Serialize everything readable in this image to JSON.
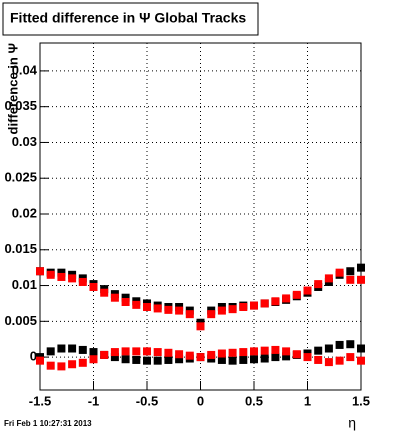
{
  "chart_data": {
    "type": "scatter",
    "title": "Fitted difference in Ψ Global Tracks",
    "y_label": "difference in Ψ",
    "x_label": "η",
    "footer": "Fri Feb  1 10:27:31 2013",
    "x": [
      -1.5,
      -1.4,
      -1.3,
      -1.2,
      -1.1,
      -1,
      -0.9,
      -0.8,
      -0.7,
      -0.6,
      -0.5,
      -0.4,
      -0.3,
      -0.2,
      -0.1,
      0,
      0.1,
      0.2,
      0.3,
      0.4,
      0.5,
      0.6,
      0.7,
      0.8,
      0.9,
      1,
      1.1,
      1.2,
      1.3,
      1.4,
      1.5
    ],
    "series": [
      {
        "color": "#000000",
        "values": [
          0.012,
          0.0118,
          0.0118,
          0.0115,
          0.011,
          0.0102,
          0.0095,
          0.0088,
          0.0083,
          0.0078,
          0.0075,
          0.0072,
          0.007,
          0.007,
          0.0065,
          0.0048,
          0.0065,
          0.007,
          0.007,
          0.0072,
          0.0072,
          0.0075,
          0.0077,
          0.008,
          0.0085,
          0.009,
          0.0098,
          0.0105,
          0.0115,
          0.012,
          0.0125
        ]
      },
      {
        "color": "#ff0000",
        "values": [
          0.012,
          0.0115,
          0.0112,
          0.011,
          0.0105,
          0.0098,
          0.009,
          0.0083,
          0.0077,
          0.0073,
          0.007,
          0.0068,
          0.0066,
          0.0065,
          0.006,
          0.0043,
          0.006,
          0.0065,
          0.0067,
          0.007,
          0.0072,
          0.0075,
          0.0078,
          0.0082,
          0.0087,
          0.0093,
          0.0102,
          0.011,
          0.0118,
          0.0108,
          0.0108
        ]
      },
      {
        "color": "#000000",
        "values": [
          0,
          0.0008,
          0.0012,
          0.0012,
          0.001,
          0.0007,
          0.0003,
          0,
          -0.0003,
          -0.0004,
          -0.0005,
          -0.0005,
          -0.0004,
          -0.0003,
          -0.0002,
          0,
          -0.0002,
          -0.0004,
          -0.0005,
          -0.0004,
          -0.0003,
          -0.0002,
          0,
          0.0001,
          0.0003,
          0.0005,
          0.0009,
          0.0012,
          0.0017,
          0.0018,
          0.0012
        ]
      },
      {
        "color": "#ff0000",
        "values": [
          -0.0005,
          -0.0012,
          -0.0013,
          -0.001,
          -0.0008,
          -0.0003,
          0.0003,
          0.0007,
          0.0008,
          0.0008,
          0.0008,
          0.0007,
          0.0006,
          0.0004,
          0.0002,
          0,
          0.0003,
          0.0005,
          0.0006,
          0.0007,
          0.0008,
          0.0009,
          0.001,
          0.0008,
          0.0004,
          0,
          -0.0004,
          -0.0007,
          -0.0005,
          0,
          -0.0005
        ]
      }
    ],
    "xlim": [
      -1.5,
      1.5
    ],
    "ylim": [
      -0.0046,
      0.0439
    ],
    "xticks": [
      -1.5,
      -1,
      -0.5,
      0,
      0.5,
      1,
      1.5
    ],
    "yticks": [
      0,
      0.005,
      0.01,
      0.015,
      0.02,
      0.025,
      0.03,
      0.035,
      0.04
    ],
    "grid": true
  }
}
